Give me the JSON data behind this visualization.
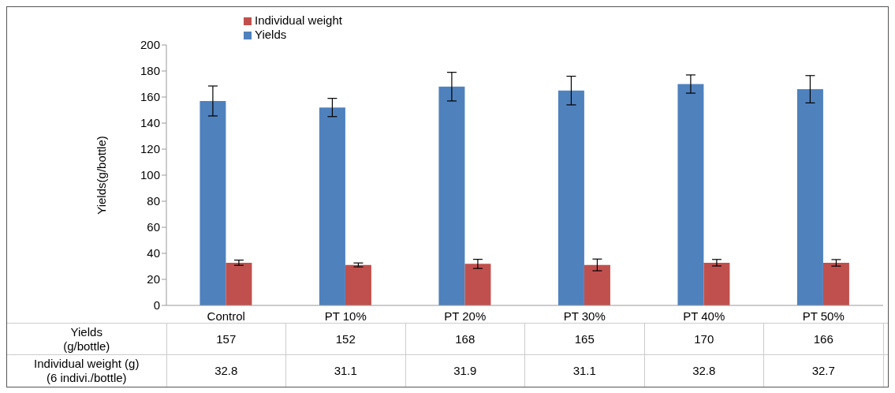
{
  "chart_data": {
    "type": "bar",
    "ylabel": "Yields(g/bottle)",
    "categories": [
      "Control",
      "PT 10%",
      "PT 20%",
      "PT 30%",
      "PT 40%",
      "PT 50%"
    ],
    "series": [
      {
        "name": "Yields",
        "color": "#4f81bd",
        "values": [
          157,
          152,
          168,
          165,
          170,
          166
        ],
        "errors": [
          11.5,
          7,
          11,
          11,
          7,
          10.5
        ]
      },
      {
        "name": "Individual weight",
        "color": "#c0504d",
        "values": [
          32.8,
          31.1,
          31.9,
          31.1,
          32.8,
          32.7
        ],
        "errors": [
          2,
          1.5,
          3.5,
          4.5,
          2.5,
          2.5
        ]
      }
    ],
    "ylim": [
      0,
      200
    ],
    "yticks": [
      0,
      20,
      40,
      60,
      80,
      100,
      120,
      140,
      160,
      180,
      200
    ],
    "grid": false,
    "legend": "top",
    "data_labels": true,
    "annotations": [
      "Yields\n(g/bottle)",
      "Individual weight (g)\n(6 indivi./bottle)"
    ]
  }
}
